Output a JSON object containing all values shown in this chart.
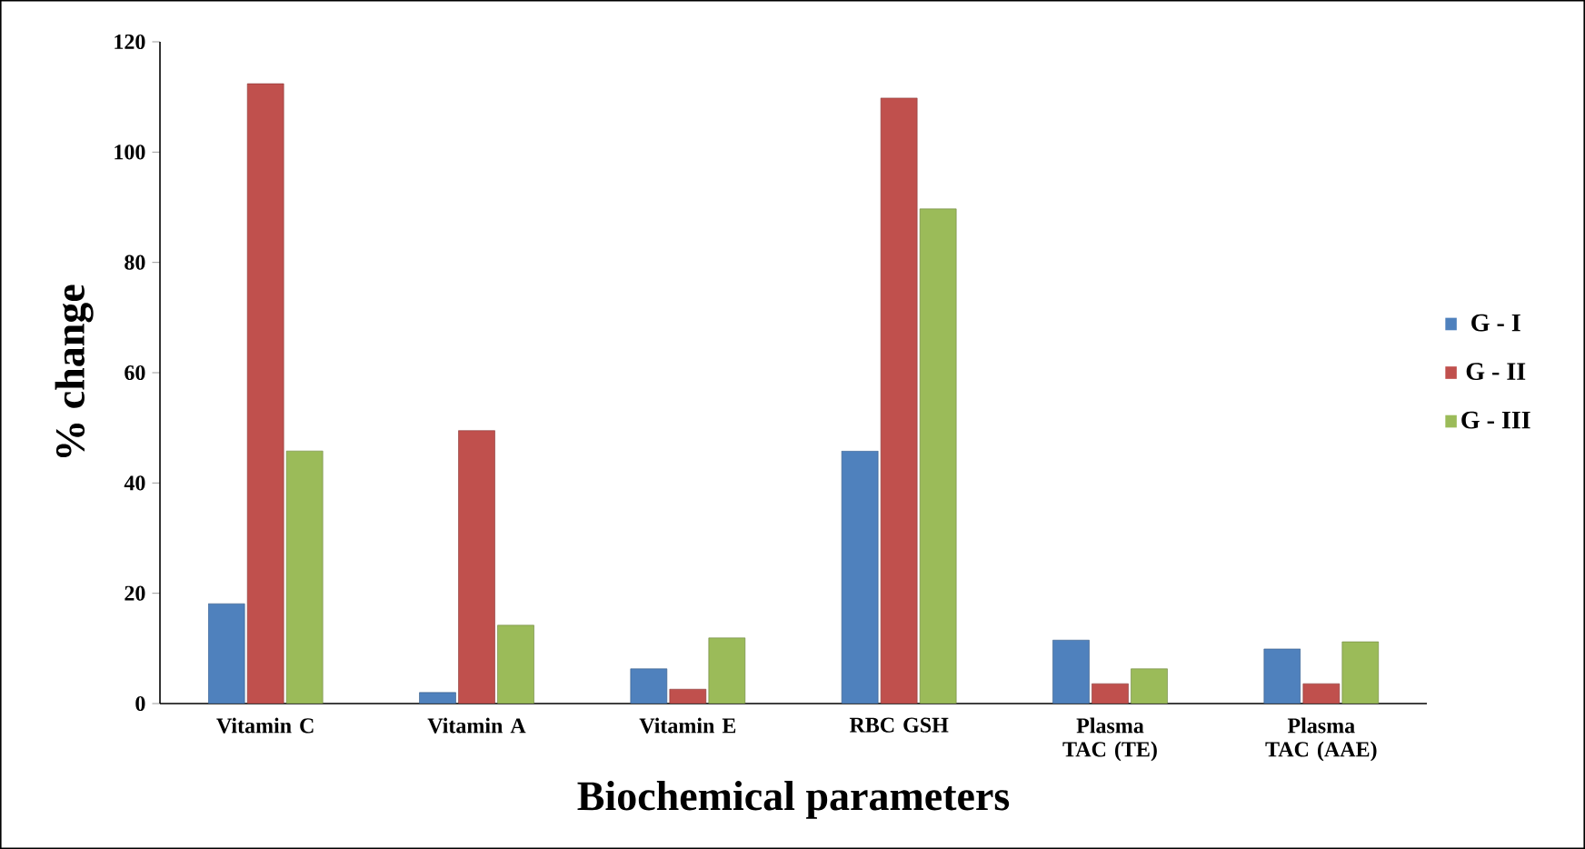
{
  "chart_data": {
    "type": "bar",
    "xlabel": "Biochemical parameters",
    "ylabel": "% change",
    "categories": [
      "Vitamin C",
      "Vitamin A",
      "Vitamin E",
      "RBC GSH",
      "Plasma TAC (TE)",
      "Plasma TAC (AAE)"
    ],
    "series": [
      {
        "name": "G - I",
        "color": "#4f81bd",
        "values": [
          18.1,
          2,
          6.3,
          45.8,
          11.5,
          9.9
        ]
      },
      {
        "name": "G - II",
        "color": "#c0504d",
        "values": [
          112.4,
          49.5,
          2.6,
          109.8,
          3.6,
          3.6
        ]
      },
      {
        "name": "G - III",
        "color": "#9bbb59",
        "values": [
          45.8,
          14.2,
          11.9,
          89.7,
          6.3,
          11.2
        ]
      }
    ],
    "ylim": [
      0,
      120
    ],
    "yticks": [
      0,
      20,
      40,
      60,
      80,
      100,
      120
    ],
    "grid": false,
    "legend": "right"
  }
}
